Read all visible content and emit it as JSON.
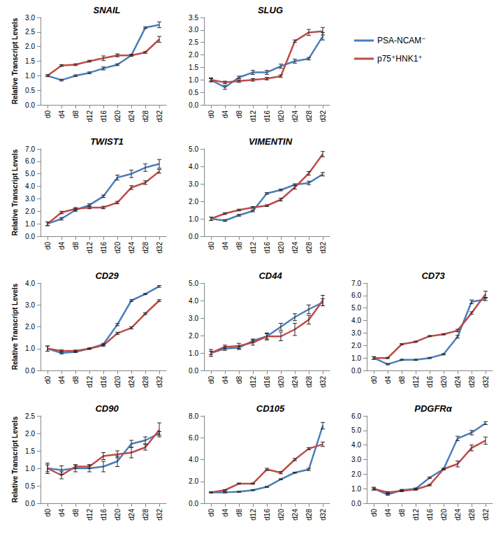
{
  "chart_data": [
    {
      "type": "line",
      "title": "SNAIL",
      "ylabel": "Relative Transcript Levels",
      "categories": [
        "d0",
        "d4",
        "d8",
        "d12",
        "d16",
        "d20",
        "d24",
        "d28",
        "d32"
      ],
      "series": [
        {
          "name": "PSA-NCAM⁻",
          "color": "#4a7ebb",
          "values": [
            1.0,
            0.85,
            1.0,
            1.1,
            1.25,
            1.38,
            1.7,
            2.65,
            2.75
          ],
          "errors": [
            0.03,
            0.03,
            0.03,
            0.03,
            0.05,
            0.03,
            0.03,
            0.03,
            0.1
          ]
        },
        {
          "name": "p75⁺HNK1⁺",
          "color": "#be4b48",
          "values": [
            1.0,
            1.35,
            1.38,
            1.5,
            1.6,
            1.7,
            1.7,
            1.8,
            2.25
          ],
          "errors": [
            0.03,
            0.03,
            0.03,
            0.03,
            0.08,
            0.05,
            0.03,
            0.03,
            0.1
          ]
        }
      ],
      "ylim": [
        0,
        3
      ],
      "yticks": [
        {
          "value": 0,
          "label": "0.0"
        },
        {
          "value": 0.5,
          "label": "0.5"
        },
        {
          "value": 1,
          "label": "1.0"
        },
        {
          "value": 1.5,
          "label": "1.5"
        },
        {
          "value": 2,
          "label": "2.0"
        },
        {
          "value": 2.5,
          "label": "2.5"
        },
        {
          "value": 3,
          "label": "3.0"
        }
      ],
      "grid": false
    },
    {
      "type": "line",
      "title": "SLUG",
      "legend": "right",
      "categories": [
        "d0",
        "d4",
        "d8",
        "d12",
        "d16",
        "d20",
        "d24",
        "d28",
        "d32"
      ],
      "series": [
        {
          "name": "PSA-NCAM⁻",
          "color": "#4a7ebb",
          "values": [
            1.0,
            0.7,
            1.1,
            1.3,
            1.3,
            1.55,
            1.75,
            1.85,
            2.75
          ],
          "errors": [
            0.05,
            0.08,
            0.05,
            0.08,
            0.08,
            0.08,
            0.08,
            0.05,
            0.15
          ]
        },
        {
          "name": "p75⁺HNK1⁺",
          "color": "#be4b48",
          "values": [
            1.0,
            0.9,
            0.95,
            1.0,
            1.05,
            1.15,
            2.55,
            2.9,
            2.95
          ],
          "errors": [
            0.08,
            0.05,
            0.05,
            0.05,
            0.05,
            0.05,
            0.05,
            0.12,
            0.15
          ]
        }
      ],
      "ylim": [
        0,
        3.5
      ],
      "yticks": [
        {
          "value": 0,
          "label": "0.0"
        },
        {
          "value": 0.5,
          "label": "0.5"
        },
        {
          "value": 1,
          "label": "1.0"
        },
        {
          "value": 1.5,
          "label": "1.5"
        },
        {
          "value": 2,
          "label": "2.0"
        },
        {
          "value": 2.5,
          "label": "2.5"
        },
        {
          "value": 3,
          "label": "3.0"
        },
        {
          "value": 3.5,
          "label": "3.5"
        }
      ],
      "grid": false
    },
    {
      "type": "line",
      "title": "TWIST1",
      "ylabel": "Relative Transcript Levels",
      "categories": [
        "d0",
        "d4",
        "d8",
        "d12",
        "d16",
        "d20",
        "d24",
        "d28",
        "d32"
      ],
      "series": [
        {
          "name": "PSA-NCAM⁻",
          "color": "#4a7ebb",
          "values": [
            1.0,
            1.4,
            2.1,
            2.5,
            3.2,
            4.7,
            5.0,
            5.5,
            5.8
          ],
          "errors": [
            0.15,
            0.1,
            0.1,
            0.1,
            0.1,
            0.2,
            0.3,
            0.3,
            0.35
          ]
        },
        {
          "name": "p75⁺HNK1⁺",
          "color": "#be4b48",
          "values": [
            1.0,
            1.9,
            2.2,
            2.3,
            2.3,
            2.7,
            3.9,
            4.3,
            5.2
          ],
          "errors": [
            0.15,
            0.1,
            0.1,
            0.1,
            0.1,
            0.1,
            0.15,
            0.15,
            0.15
          ]
        }
      ],
      "ylim": [
        0,
        7
      ],
      "yticks": [
        {
          "value": 0,
          "label": "0.0"
        },
        {
          "value": 1,
          "label": "1.0"
        },
        {
          "value": 2,
          "label": "2.0"
        },
        {
          "value": 3,
          "label": "3.0"
        },
        {
          "value": 4,
          "label": "4.0"
        },
        {
          "value": 5,
          "label": "5.0"
        },
        {
          "value": 6,
          "label": "6.0"
        },
        {
          "value": 7,
          "label": "7.0"
        }
      ],
      "grid": false
    },
    {
      "type": "line",
      "title": "VIMENTIN",
      "categories": [
        "d0",
        "d4",
        "d8",
        "d12",
        "d16",
        "d20",
        "d24",
        "d28",
        "d32"
      ],
      "series": [
        {
          "name": "PSA-NCAM⁻",
          "color": "#4a7ebb",
          "values": [
            1.0,
            0.9,
            1.2,
            1.45,
            2.45,
            2.65,
            2.95,
            3.05,
            3.55
          ],
          "errors": [
            0.1,
            0.05,
            0.05,
            0.05,
            0.05,
            0.05,
            0.05,
            0.1,
            0.1
          ]
        },
        {
          "name": "p75⁺HNK1⁺",
          "color": "#be4b48",
          "values": [
            1.0,
            1.3,
            1.5,
            1.65,
            1.75,
            2.1,
            2.8,
            3.6,
            4.7
          ],
          "errors": [
            0.1,
            0.05,
            0.05,
            0.05,
            0.05,
            0.08,
            0.1,
            0.1,
            0.15
          ]
        }
      ],
      "ylim": [
        0,
        5
      ],
      "yticks": [
        {
          "value": 0,
          "label": "0.0"
        },
        {
          "value": 1,
          "label": "1.0"
        },
        {
          "value": 2,
          "label": "2.0"
        },
        {
          "value": 3,
          "label": "3.0"
        },
        {
          "value": 4,
          "label": "4.0"
        },
        {
          "value": 5,
          "label": "5.0"
        }
      ],
      "grid": false
    },
    {
      "type": "line",
      "title": "CD29",
      "ylabel": "Relative Transcript Levels",
      "categories": [
        "d0",
        "d4",
        "d8",
        "d12",
        "d16",
        "d20",
        "d24",
        "d28",
        "d32"
      ],
      "series": [
        {
          "name": "PSA-NCAM⁻",
          "color": "#4a7ebb",
          "values": [
            1.0,
            0.8,
            0.85,
            1.0,
            1.2,
            2.1,
            3.2,
            3.5,
            3.85
          ],
          "errors": [
            0.12,
            0.04,
            0.03,
            0.03,
            0.04,
            0.05,
            0.04,
            0.03,
            0.04
          ]
        },
        {
          "name": "p75⁺HNK1⁺",
          "color": "#be4b48",
          "values": [
            1.0,
            0.9,
            0.9,
            1.0,
            1.15,
            1.7,
            1.95,
            2.6,
            3.2
          ],
          "errors": [
            0.12,
            0.04,
            0.03,
            0.03,
            0.04,
            0.05,
            0.05,
            0.04,
            0.04
          ]
        }
      ],
      "ylim": [
        0,
        4
      ],
      "yticks": [
        {
          "value": 0,
          "label": "0.0"
        },
        {
          "value": 1,
          "label": "1.0"
        },
        {
          "value": 2,
          "label": "2.0"
        },
        {
          "value": 3,
          "label": "3.0"
        },
        {
          "value": 4,
          "label": "4.0"
        }
      ],
      "grid": false
    },
    {
      "type": "line",
      "title": "CD44",
      "categories": [
        "d0",
        "d4",
        "d8",
        "d12",
        "d16",
        "d20",
        "d24",
        "d28",
        "d32"
      ],
      "series": [
        {
          "name": "PSA-NCAM⁻",
          "color": "#4a7ebb",
          "values": [
            1.0,
            1.25,
            1.3,
            1.7,
            1.95,
            2.5,
            3.05,
            3.5,
            3.9
          ],
          "errors": [
            0.1,
            0.1,
            0.1,
            0.1,
            0.15,
            0.2,
            0.2,
            0.25,
            0.2
          ]
        },
        {
          "name": "p75⁺HNK1⁺",
          "color": "#be4b48",
          "values": [
            1.0,
            1.35,
            1.4,
            1.6,
            1.95,
            1.95,
            2.35,
            2.9,
            4.0
          ],
          "errors": [
            0.2,
            0.1,
            0.15,
            0.15,
            0.2,
            0.25,
            0.35,
            0.25,
            0.3
          ]
        }
      ],
      "ylim": [
        0,
        5
      ],
      "yticks": [
        {
          "value": 0,
          "label": "0.0"
        },
        {
          "value": 1,
          "label": "1.0"
        },
        {
          "value": 2,
          "label": "2.0"
        },
        {
          "value": 3,
          "label": "3.0"
        },
        {
          "value": 4,
          "label": "4.0"
        },
        {
          "value": 5,
          "label": "5.0"
        }
      ],
      "grid": false
    },
    {
      "type": "line",
      "title": "CD73",
      "categories": [
        "d0",
        "d4",
        "d8",
        "d12",
        "d16",
        "d20",
        "d24",
        "d28",
        "d32"
      ],
      "series": [
        {
          "name": "PSA-NCAM⁻",
          "color": "#4a7ebb",
          "values": [
            1.0,
            0.5,
            0.85,
            0.85,
            1.0,
            1.3,
            2.7,
            5.5,
            5.7
          ],
          "errors": [
            0.1,
            0.05,
            0.05,
            0.05,
            0.05,
            0.05,
            0.1,
            0.15,
            0.1
          ]
        },
        {
          "name": "p75⁺HNK1⁺",
          "color": "#be4b48",
          "values": [
            1.0,
            1.0,
            2.1,
            2.3,
            2.75,
            2.9,
            3.2,
            4.6,
            6.1
          ],
          "errors": [
            0.1,
            0.05,
            0.05,
            0.05,
            0.05,
            0.05,
            0.1,
            0.1,
            0.25
          ]
        }
      ],
      "ylim": [
        0,
        7
      ],
      "yticks": [
        {
          "value": 0,
          "label": "0.0"
        },
        {
          "value": 1,
          "label": "1.0"
        },
        {
          "value": 2,
          "label": "2.0"
        },
        {
          "value": 3,
          "label": "3.0"
        },
        {
          "value": 4,
          "label": "4.0"
        },
        {
          "value": 5,
          "label": "5.0"
        },
        {
          "value": 6,
          "label": "6.0"
        },
        {
          "value": 7,
          "label": "7.0"
        }
      ],
      "grid": false
    },
    {
      "type": "line",
      "title": "CD90",
      "ylabel": "Relative Transcript Levels",
      "categories": [
        "d0",
        "d4",
        "d8",
        "d12",
        "d16",
        "d20",
        "d24",
        "d28",
        "d32"
      ],
      "series": [
        {
          "name": "PSA-NCAM⁻",
          "color": "#4a7ebb",
          "values": [
            1.0,
            0.95,
            1.0,
            1.0,
            1.05,
            1.2,
            1.7,
            1.8,
            2.0
          ],
          "errors": [
            0.15,
            0.12,
            0.1,
            0.1,
            0.15,
            0.15,
            0.1,
            0.1,
            0.05
          ]
        },
        {
          "name": "p75⁺HNK1⁺",
          "color": "#be4b48",
          "values": [
            1.0,
            0.8,
            1.05,
            1.05,
            1.35,
            1.4,
            1.45,
            1.6,
            2.1
          ],
          "errors": [
            0.1,
            0.1,
            0.05,
            0.05,
            0.1,
            0.1,
            0.15,
            0.08,
            0.2
          ]
        }
      ],
      "ylim": [
        0,
        2.5
      ],
      "yticks": [
        {
          "value": 0,
          "label": "0.0"
        },
        {
          "value": 0.5,
          "label": "0.5"
        },
        {
          "value": 1,
          "label": "1.0"
        },
        {
          "value": 1.5,
          "label": "1.5"
        },
        {
          "value": 2,
          "label": "2.0"
        },
        {
          "value": 2.5,
          "label": "2.5"
        }
      ],
      "grid": false
    },
    {
      "type": "line",
      "title": "CD105",
      "categories": [
        "d0",
        "d4",
        "d8",
        "d12",
        "d16",
        "d20",
        "d24",
        "d28",
        "d32"
      ],
      "series": [
        {
          "name": "PSA-NCAM⁻",
          "color": "#4a7ebb",
          "values": [
            1.0,
            1.0,
            1.05,
            1.2,
            1.5,
            2.2,
            2.8,
            3.1,
            7.1
          ],
          "errors": [
            0.05,
            0.05,
            0.05,
            0.05,
            0.05,
            0.05,
            0.05,
            0.1,
            0.3
          ]
        },
        {
          "name": "p75⁺HNK1⁺",
          "color": "#be4b48",
          "values": [
            1.0,
            1.2,
            1.8,
            1.8,
            3.1,
            2.8,
            4.0,
            5.0,
            5.4
          ],
          "errors": [
            0.05,
            0.05,
            0.05,
            0.05,
            0.1,
            0.1,
            0.1,
            0.1,
            0.2
          ]
        }
      ],
      "ylim": [
        0,
        8
      ],
      "yticks": [
        {
          "value": 0,
          "label": "0.0"
        },
        {
          "value": 2,
          "label": "2.0"
        },
        {
          "value": 4,
          "label": "4.0"
        },
        {
          "value": 6,
          "label": "6.0"
        },
        {
          "value": 8,
          "label": "8.0"
        }
      ],
      "grid": false
    },
    {
      "type": "line",
      "title": "PDGFRα",
      "categories": [
        "d0",
        "d4",
        "d8",
        "d12",
        "d16",
        "d20",
        "d24",
        "d28",
        "d32"
      ],
      "series": [
        {
          "name": "PSA-NCAM⁻",
          "color": "#4a7ebb",
          "values": [
            1.0,
            0.6,
            0.9,
            1.0,
            1.75,
            2.35,
            4.45,
            4.85,
            5.5
          ],
          "errors": [
            0.1,
            0.05,
            0.05,
            0.05,
            0.05,
            0.05,
            0.15,
            0.15,
            0.1
          ]
        },
        {
          "name": "p75⁺HNK1⁺",
          "color": "#be4b48",
          "values": [
            1.0,
            0.75,
            0.85,
            0.95,
            1.25,
            2.35,
            2.7,
            3.8,
            4.3
          ],
          "errors": [
            0.05,
            0.05,
            0.05,
            0.05,
            0.05,
            0.05,
            0.2,
            0.2,
            0.25
          ]
        }
      ],
      "ylim": [
        0,
        6
      ],
      "yticks": [
        {
          "value": 0,
          "label": "0.0"
        },
        {
          "value": 1,
          "label": "1.0"
        },
        {
          "value": 2,
          "label": "2.0"
        },
        {
          "value": 3,
          "label": "3.0"
        },
        {
          "value": 4,
          "label": "4.0"
        },
        {
          "value": 5,
          "label": "5.0"
        },
        {
          "value": 6,
          "label": "6.0"
        }
      ],
      "grid": false
    }
  ]
}
